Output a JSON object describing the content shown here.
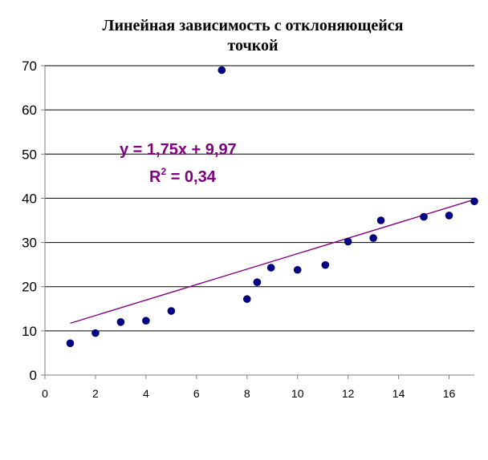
{
  "chart_data": {
    "type": "scatter",
    "title_line1": "Линейная зависимость с отклоняющейся",
    "title_line2": "точкой",
    "xlim": [
      0,
      17
    ],
    "ylim": [
      0,
      70
    ],
    "x_ticks": [
      0,
      2,
      4,
      6,
      8,
      10,
      12,
      14,
      16
    ],
    "y_ticks": [
      0,
      10,
      20,
      30,
      40,
      50,
      60,
      70
    ],
    "grid": "horizontal",
    "legend": "none",
    "points": [
      {
        "x": 1,
        "y": 7.2
      },
      {
        "x": 2,
        "y": 9.5
      },
      {
        "x": 3,
        "y": 12.0
      },
      {
        "x": 4,
        "y": 12.3
      },
      {
        "x": 5,
        "y": 14.5
      },
      {
        "x": 7,
        "y": 69.0
      },
      {
        "x": 8,
        "y": 17.2
      },
      {
        "x": 8.4,
        "y": 21.0
      },
      {
        "x": 8.95,
        "y": 24.3
      },
      {
        "x": 10,
        "y": 23.8
      },
      {
        "x": 11.1,
        "y": 24.9
      },
      {
        "x": 12,
        "y": 30.2
      },
      {
        "x": 13,
        "y": 31.0
      },
      {
        "x": 13.3,
        "y": 35.0
      },
      {
        "x": 15,
        "y": 35.8
      },
      {
        "x": 16,
        "y": 36.1
      },
      {
        "x": 17,
        "y": 39.3
      }
    ],
    "trendline": {
      "slope": 1.75,
      "intercept": 9.97,
      "x_start": 1,
      "x_end": 17
    },
    "equation_text": "y = 1,75x + 9,97",
    "r2_prefix": "R",
    "r2_exp": "2",
    "r2_value": " = 0,34",
    "colors": {
      "point": "#00008B",
      "trendline": "#800080",
      "equation": "#800080",
      "axis": "#808080",
      "grid": "#000000"
    }
  }
}
